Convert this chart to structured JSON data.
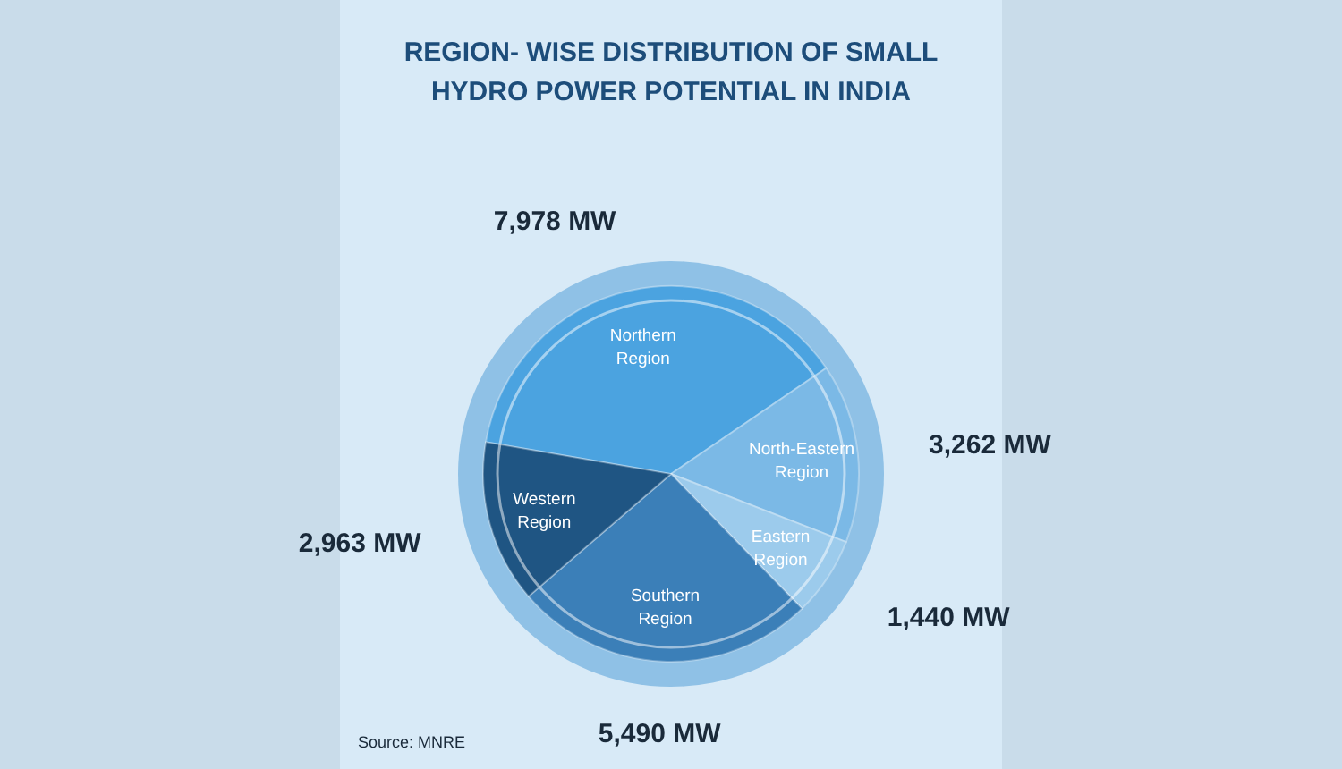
{
  "chart_data": {
    "type": "pie",
    "title": "REGION- WISE DISTRIBUTION OF SMALL HYDRO POWER POTENTIAL IN INDIA",
    "categories": [
      "Northern Region",
      "North-Eastern Region",
      "Eastern Region",
      "Southern Region",
      "Western Region"
    ],
    "values": [
      7978,
      3262,
      1440,
      5490,
      2963
    ],
    "value_labels": [
      "7,978 MW",
      "3,262 MW",
      "1,440 MW",
      "5,490 MW",
      "2,963 MW"
    ],
    "colors": [
      "#4ba3e0",
      "#7bb9e6",
      "#9ccbec",
      "#3b7fb8",
      "#1f5583"
    ],
    "annotations": [
      "Source: MNRE"
    ]
  }
}
